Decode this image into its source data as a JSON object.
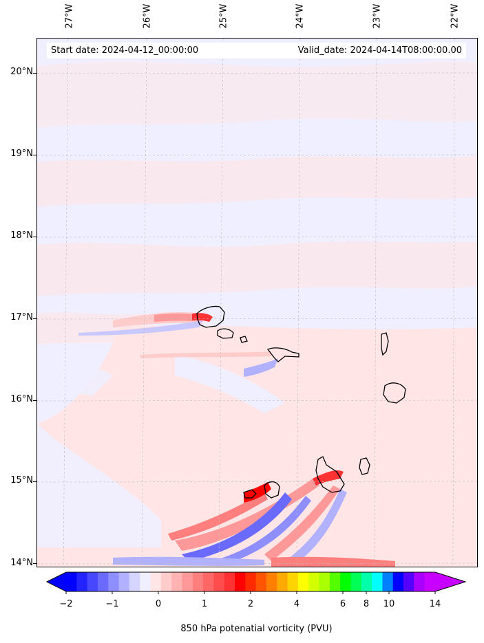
{
  "map": {
    "start_date": "Start date: 2024-04-12_00:00:00",
    "valid_date": "Valid_date: 2024-04-14T08:00:00.00",
    "lon_labels": [
      "27°W",
      "26°W",
      "25°W",
      "24°W",
      "23°W",
      "22°W"
    ],
    "lat_labels": [
      "20°N",
      "19°N",
      "18°N",
      "17°N",
      "16°N",
      "15°N",
      "14°N"
    ],
    "background_color": "#efefff",
    "grid": true
  },
  "colorbar": {
    "title": "850 hPa potenatial vorticity (PVU)",
    "tick_labels": [
      "−2",
      "−1",
      "0",
      "1",
      "2",
      "4",
      "6",
      "8",
      "10",
      "14"
    ],
    "colors": [
      "#0000ff",
      "#2323ff",
      "#4747ff",
      "#6a6aff",
      "#8e8eff",
      "#b1b1ff",
      "#d5d5ff",
      "#efefff",
      "#ffe5e5",
      "#ffcccc",
      "#ffb2b2",
      "#ff9999",
      "#ff7f7f",
      "#ff6666",
      "#ff4c4c",
      "#ff3333",
      "#ff0000",
      "#ff2a00",
      "#ff5500",
      "#ff8000",
      "#ffaa00",
      "#ffd400",
      "#ffff00",
      "#d4ff00",
      "#aaff00",
      "#55ff00",
      "#00ff00",
      "#00ff55",
      "#00ffaa",
      "#00ffff",
      "#0080ff",
      "#0000ff",
      "#5500ff",
      "#aa00ff",
      "#c800ff"
    ],
    "extend": "both"
  }
}
